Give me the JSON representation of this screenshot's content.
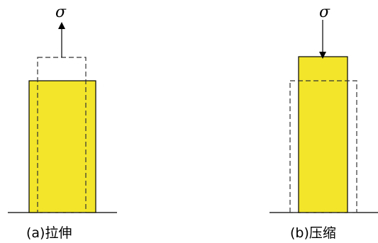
{
  "colors": {
    "block_fill": "#F2E52A",
    "stroke": "#000000",
    "dashed_outline": "#333333"
  },
  "diagrams": [
    {
      "stress_symbol": "σ",
      "arrow_direction": "up",
      "caption": "(a)拉伸"
    },
    {
      "stress_symbol": "σ",
      "arrow_direction": "down",
      "caption": "(b)压缩"
    }
  ]
}
